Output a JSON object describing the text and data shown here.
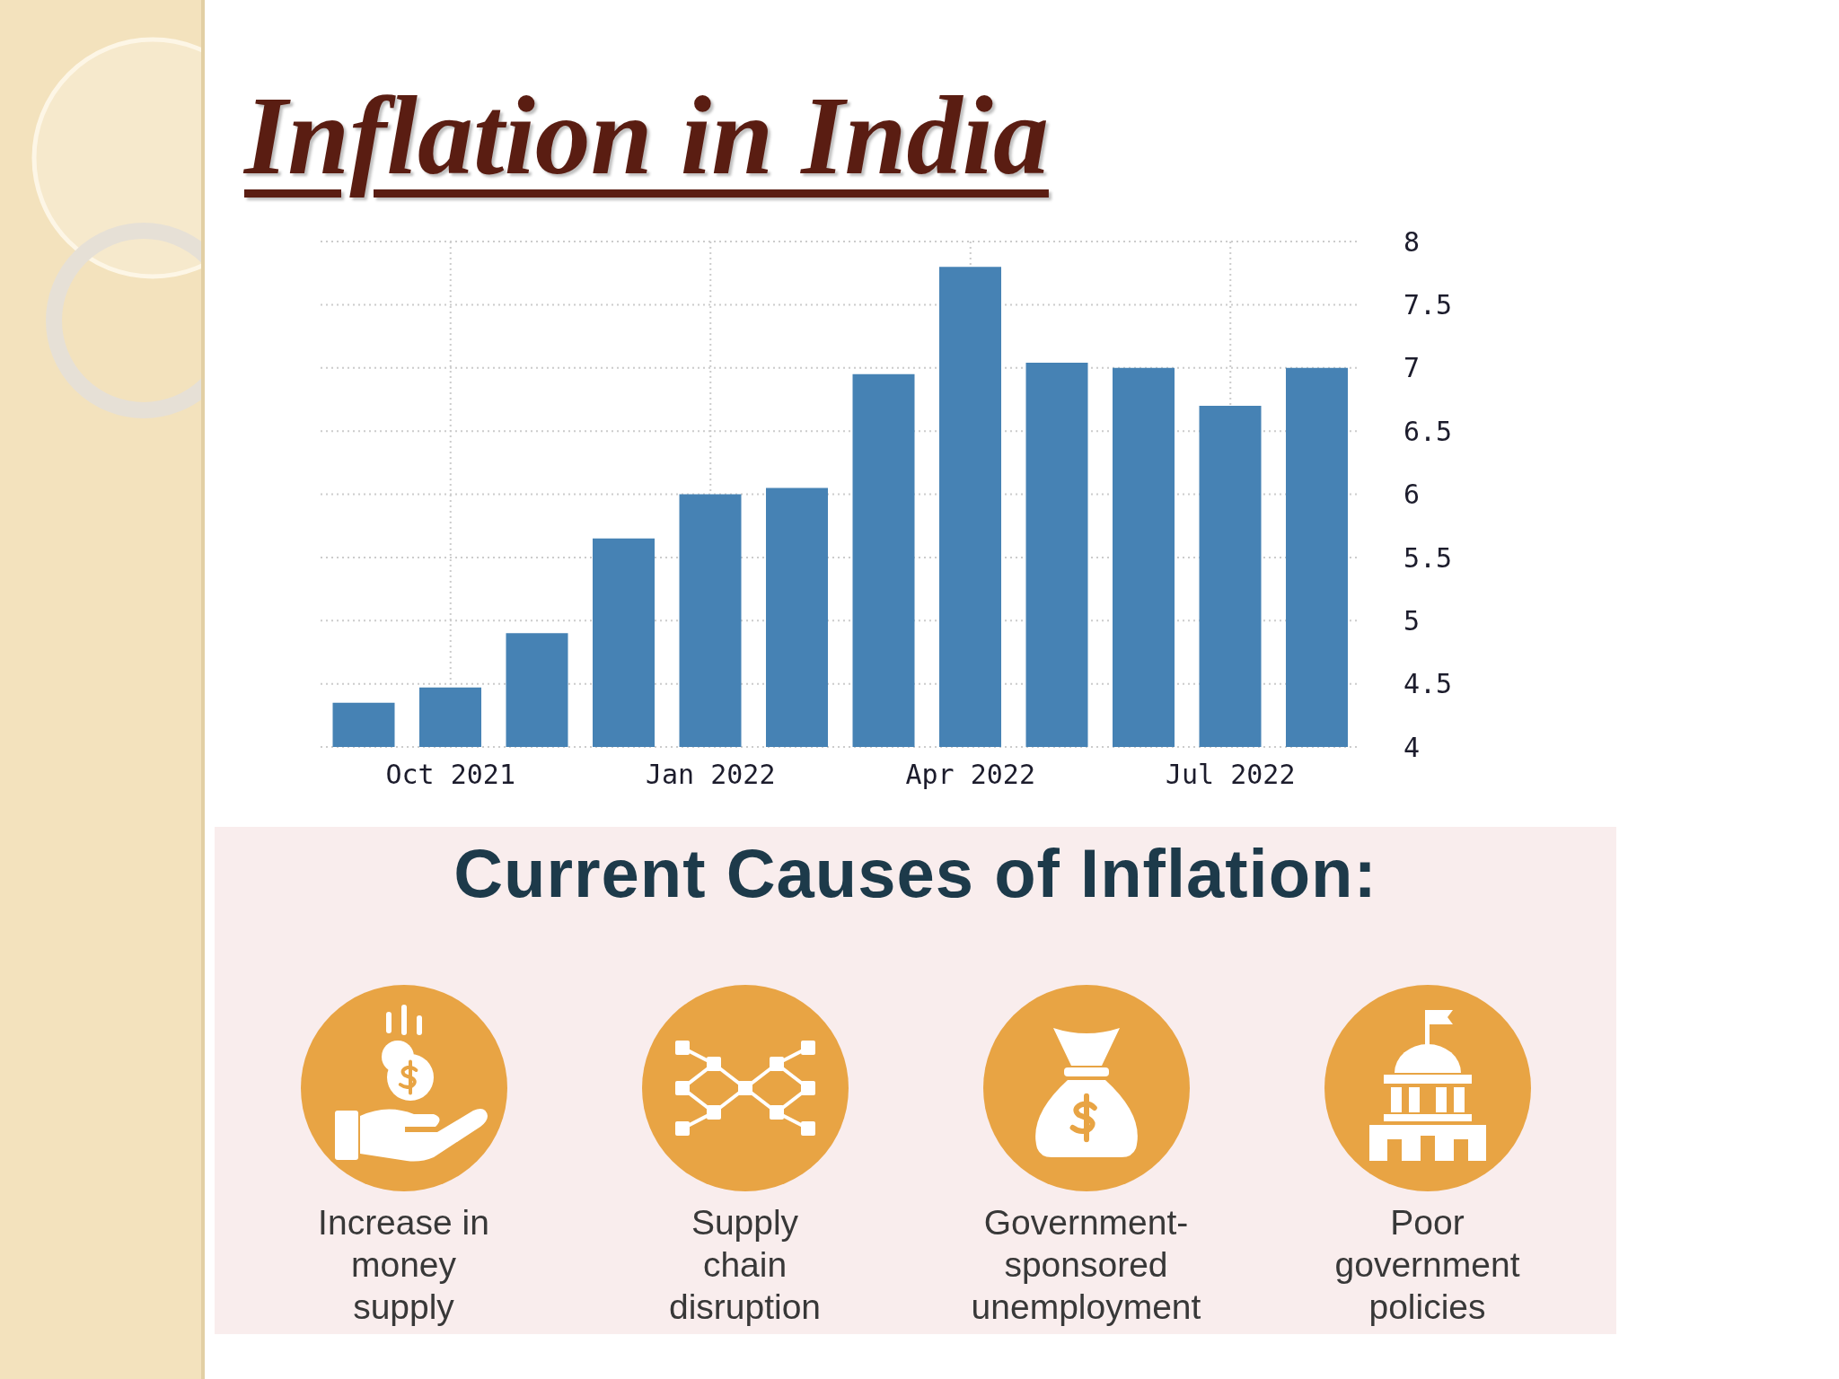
{
  "chart_data": [
    {
      "type": "bar",
      "title": "Inflation in India",
      "categories": [
        null,
        "Oct 2021",
        null,
        null,
        "Jan 2022",
        null,
        null,
        "Apr 2022",
        null,
        null,
        "Jul 2022",
        null
      ],
      "values": [
        4.35,
        4.47,
        4.9,
        5.65,
        6.0,
        6.05,
        6.95,
        7.8,
        7.04,
        7.0,
        6.7,
        7.0
      ],
      "color": "#4682b4",
      "ylim": [
        4,
        8
      ],
      "yticks": [
        4,
        4.5,
        5,
        5.5,
        6,
        6.5,
        7,
        7.5,
        8
      ],
      "grid": true
    },
    {
      "type": "other",
      "title": "Current Causes of Inflation:",
      "annotations": [
        "Increase in\nmoney\nsupply",
        "Supply\nchain\ndisruption",
        "Government-\nsponsored\nunemployment",
        "Poor\ngovernment\npolicies"
      ]
    }
  ]
}
